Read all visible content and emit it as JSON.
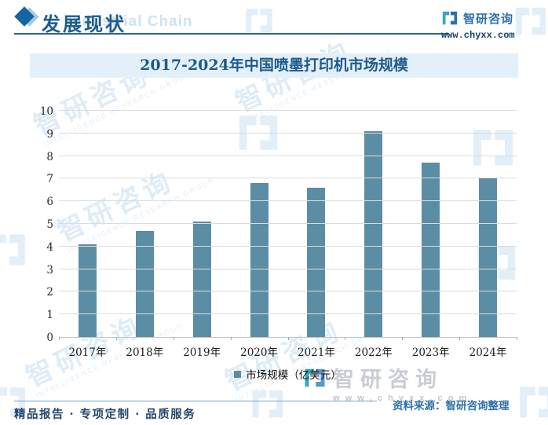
{
  "header": {
    "section_title": "发展现状",
    "section_watermark": "Industrial Chain",
    "brand_name": "智研咨询",
    "brand_url": "www.chyxx.com"
  },
  "chart_data": {
    "type": "bar",
    "title": "2017-2024年中国喷墨打印机市场规模",
    "categories": [
      "2017年",
      "2018年",
      "2019年",
      "2020年",
      "2021年",
      "2022年",
      "2023年",
      "2024年"
    ],
    "values": [
      4.1,
      4.7,
      5.1,
      6.8,
      6.6,
      9.1,
      7.7,
      7.0
    ],
    "series_name": "市场规模（亿美元）",
    "xlabel": "",
    "ylabel": "",
    "ylim": [
      0,
      10
    ],
    "ytick_step": 1,
    "grid": true,
    "legend_position": "bottom",
    "bar_color": "#5b8da4"
  },
  "watermark": {
    "text": "智研咨询",
    "subtext": "INTELLIGENCE RESEARCH GROUP",
    "url": "w w w . c h y x x . c o m"
  },
  "footer": {
    "tagline": "精品报告 · 专项定制 · 品质服务",
    "source": "资料来源：智研咨询整理",
    "brand_name": "智研咨询"
  },
  "colors": {
    "bar": "#5b8da4",
    "title_text": "#1d5a8c",
    "title_band_bg": "#e4f0f9",
    "header_text": "#1c5c8e",
    "brand_blue": "#2e6fa8",
    "gridline": "#dcdcdc",
    "watermark_light": "#e2eef8",
    "logo_teal": "#35aab8",
    "logo_blue": "#2e6fa8"
  }
}
